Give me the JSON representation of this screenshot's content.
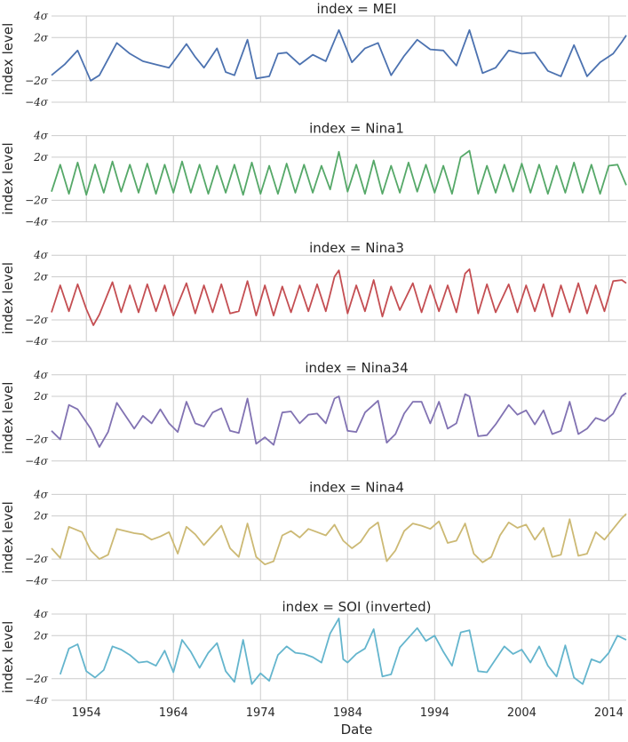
{
  "chart_data": {
    "type": "line",
    "xlabel": "Date",
    "ylabel": "index level",
    "x_range": [
      1950,
      2016
    ],
    "y_range": [
      -4,
      4
    ],
    "y_ticks": [
      {
        "value": 4,
        "label": "4σ"
      },
      {
        "value": 2,
        "label": "2σ"
      },
      {
        "value": -2,
        "label": "−2σ"
      },
      {
        "value": -4,
        "label": "−4σ"
      }
    ],
    "x_ticks": [
      "1954",
      "1964",
      "1974",
      "1984",
      "1994",
      "2004",
      "2014"
    ],
    "x_tick_values": [
      1954,
      1964,
      1974,
      1984,
      1994,
      2004,
      2014
    ],
    "grid": true,
    "panels": [
      {
        "title": "index = MEI",
        "color": "#4c72b0",
        "x": [
          1950.0,
          1951.5,
          1953.0,
          1954.5,
          1955.5,
          1957.5,
          1959.0,
          1960.5,
          1962.0,
          1963.5,
          1965.5,
          1966.5,
          1967.5,
          1969.0,
          1970.0,
          1971.0,
          1972.5,
          1973.5,
          1975.0,
          1976.0,
          1977.0,
          1978.5,
          1980.0,
          1981.5,
          1983.0,
          1984.5,
          1986.0,
          1987.5,
          1989.0,
          1990.5,
          1992.0,
          1993.5,
          1995.0,
          1996.5,
          1998.0,
          1999.5,
          2001.0,
          2002.5,
          2004.0,
          2005.5,
          2007.0,
          2008.5,
          2010.0,
          2011.5,
          2013.0,
          2014.5,
          2015.5,
          2016.0
        ],
        "y": [
          -1.5,
          -0.5,
          0.8,
          -2.0,
          -1.5,
          1.5,
          0.5,
          -0.2,
          -0.5,
          -0.8,
          1.4,
          0.2,
          -0.8,
          1.0,
          -1.2,
          -1.5,
          1.8,
          -1.8,
          -1.6,
          0.5,
          0.6,
          -0.5,
          0.4,
          -0.2,
          2.7,
          -0.3,
          1.0,
          1.5,
          -1.5,
          0.3,
          1.8,
          0.9,
          0.8,
          -0.6,
          2.7,
          -1.3,
          -0.8,
          0.8,
          0.5,
          0.6,
          -1.1,
          -1.6,
          1.3,
          -1.6,
          -0.3,
          0.5,
          1.6,
          2.2
        ]
      },
      {
        "title": "index = Nina1",
        "color": "#55a868",
        "x": [
          1950.0,
          1951.0,
          1952.0,
          1953.0,
          1954.0,
          1955.0,
          1956.0,
          1957.0,
          1958.0,
          1959.0,
          1960.0,
          1961.0,
          1962.0,
          1963.0,
          1964.0,
          1965.0,
          1966.0,
          1967.0,
          1968.0,
          1969.0,
          1970.0,
          1971.0,
          1972.0,
          1973.0,
          1974.0,
          1975.0,
          1976.0,
          1977.0,
          1978.0,
          1979.0,
          1980.0,
          1981.0,
          1982.0,
          1983.0,
          1984.0,
          1985.0,
          1986.0,
          1987.0,
          1988.0,
          1989.0,
          1990.0,
          1991.0,
          1992.0,
          1993.0,
          1994.0,
          1995.0,
          1996.0,
          1997.0,
          1998.0,
          1999.0,
          2000.0,
          2001.0,
          2002.0,
          2003.0,
          2004.0,
          2005.0,
          2006.0,
          2007.0,
          2008.0,
          2009.0,
          2010.0,
          2011.0,
          2012.0,
          2013.0,
          2014.0,
          2015.0,
          2016.0
        ],
        "y": [
          -1.2,
          1.3,
          -1.4,
          1.5,
          -1.5,
          1.3,
          -1.3,
          1.6,
          -1.2,
          1.3,
          -1.3,
          1.4,
          -1.4,
          1.3,
          -1.3,
          1.6,
          -1.3,
          1.3,
          -1.4,
          1.2,
          -1.3,
          1.3,
          -1.5,
          1.5,
          -1.4,
          1.2,
          -1.4,
          1.4,
          -1.3,
          1.3,
          -1.3,
          1.2,
          -1.0,
          2.5,
          -1.2,
          1.3,
          -1.4,
          1.7,
          -1.4,
          1.2,
          -1.3,
          1.5,
          -1.2,
          1.3,
          -1.3,
          1.2,
          -1.4,
          2.0,
          2.6,
          -1.4,
          1.2,
          -1.3,
          1.3,
          -1.2,
          1.4,
          -1.3,
          1.3,
          -1.4,
          1.2,
          -1.3,
          1.5,
          -1.3,
          1.3,
          -1.4,
          1.2,
          1.3,
          -0.6
        ]
      },
      {
        "title": "index = Nina3",
        "color": "#c44e52",
        "x": [
          1950.0,
          1951.0,
          1952.0,
          1953.0,
          1954.0,
          1954.8,
          1955.5,
          1957.0,
          1958.0,
          1959.0,
          1960.0,
          1961.0,
          1962.0,
          1963.0,
          1964.0,
          1965.5,
          1966.5,
          1967.5,
          1968.5,
          1969.5,
          1970.5,
          1971.5,
          1972.5,
          1973.5,
          1974.5,
          1975.5,
          1976.5,
          1977.5,
          1978.5,
          1979.5,
          1980.5,
          1981.5,
          1982.5,
          1983.0,
          1984.0,
          1985.0,
          1986.0,
          1987.0,
          1988.0,
          1989.0,
          1990.0,
          1991.5,
          1992.5,
          1993.5,
          1994.5,
          1995.5,
          1996.5,
          1997.5,
          1998.0,
          1999.0,
          2000.0,
          2001.0,
          2002.5,
          2003.5,
          2004.5,
          2005.5,
          2006.5,
          2007.5,
          2008.5,
          2009.5,
          2010.5,
          2011.5,
          2012.5,
          2013.5,
          2014.5,
          2015.5,
          2016.0
        ],
        "y": [
          -1.3,
          1.2,
          -1.2,
          1.3,
          -1.0,
          -2.5,
          -1.5,
          1.5,
          -1.3,
          1.2,
          -1.3,
          1.3,
          -1.2,
          1.2,
          -1.6,
          1.4,
          -1.4,
          1.2,
          -1.3,
          1.3,
          -1.4,
          -1.2,
          1.6,
          -1.6,
          1.2,
          -1.6,
          1.1,
          -1.3,
          1.2,
          -1.2,
          1.3,
          -1.2,
          2.0,
          2.6,
          -1.4,
          1.2,
          -1.2,
          1.7,
          -1.7,
          1.1,
          -1.1,
          1.4,
          -1.3,
          1.2,
          -1.2,
          1.2,
          -1.3,
          2.3,
          2.7,
          -1.4,
          1.3,
          -1.3,
          1.3,
          -1.3,
          1.2,
          -1.2,
          1.3,
          -1.7,
          1.2,
          -1.3,
          1.4,
          -1.4,
          1.2,
          -1.2,
          1.6,
          1.7,
          1.4
        ]
      },
      {
        "title": "index = Nina34",
        "color": "#8172b2",
        "x": [
          1950.0,
          1951.0,
          1952.0,
          1953.0,
          1954.5,
          1955.5,
          1956.5,
          1957.5,
          1958.5,
          1959.5,
          1960.5,
          1961.5,
          1962.5,
          1963.5,
          1964.5,
          1965.5,
          1966.5,
          1967.5,
          1968.5,
          1969.5,
          1970.5,
          1971.5,
          1972.5,
          1973.5,
          1974.5,
          1975.5,
          1976.5,
          1977.5,
          1978.5,
          1979.5,
          1980.5,
          1981.5,
          1982.5,
          1983.0,
          1984.0,
          1985.0,
          1986.0,
          1987.5,
          1988.5,
          1989.5,
          1990.5,
          1991.5,
          1992.5,
          1993.5,
          1994.5,
          1995.5,
          1996.5,
          1997.5,
          1998.0,
          1999.0,
          2000.0,
          2001.0,
          2002.5,
          2003.5,
          2004.5,
          2005.5,
          2006.5,
          2007.5,
          2008.5,
          2009.5,
          2010.5,
          2011.5,
          2012.5,
          2013.5,
          2014.5,
          2015.5,
          2016.0
        ],
        "y": [
          -1.2,
          -2.0,
          1.2,
          0.8,
          -1.0,
          -2.7,
          -1.3,
          1.4,
          0.2,
          -1.0,
          0.2,
          -0.5,
          0.8,
          -0.5,
          -1.3,
          1.5,
          -0.5,
          -0.8,
          0.5,
          0.9,
          -1.2,
          -1.4,
          1.8,
          -2.4,
          -1.8,
          -2.5,
          0.5,
          0.6,
          -0.5,
          0.3,
          0.4,
          -0.5,
          1.8,
          2.0,
          -1.2,
          -1.3,
          0.5,
          1.6,
          -2.3,
          -1.5,
          0.4,
          1.5,
          1.5,
          -0.5,
          1.5,
          -1.0,
          -0.5,
          2.2,
          2.0,
          -1.7,
          -1.6,
          -0.6,
          1.2,
          0.3,
          0.7,
          -0.6,
          0.7,
          -1.5,
          -1.2,
          1.5,
          -1.5,
          -1.0,
          0.0,
          -0.3,
          0.4,
          2.0,
          2.3
        ]
      },
      {
        "title": "index = Nina4",
        "color": "#ccb974",
        "x": [
          1950.0,
          1951.0,
          1952.0,
          1953.5,
          1954.5,
          1955.5,
          1956.5,
          1957.5,
          1958.5,
          1959.5,
          1960.5,
          1961.5,
          1962.5,
          1963.5,
          1964.5,
          1965.5,
          1966.5,
          1967.5,
          1968.5,
          1969.5,
          1970.5,
          1971.5,
          1972.5,
          1973.5,
          1974.5,
          1975.5,
          1976.5,
          1977.5,
          1978.5,
          1979.5,
          1980.5,
          1981.5,
          1982.5,
          1983.5,
          1984.5,
          1985.5,
          1986.5,
          1987.5,
          1988.5,
          1989.5,
          1990.5,
          1991.5,
          1992.5,
          1993.5,
          1994.5,
          1995.5,
          1996.5,
          1997.5,
          1998.5,
          1999.5,
          2000.5,
          2001.5,
          2002.5,
          2003.5,
          2004.5,
          2005.5,
          2006.5,
          2007.5,
          2008.5,
          2009.5,
          2010.5,
          2011.5,
          2012.5,
          2013.5,
          2014.5,
          2015.5,
          2016.0
        ],
        "y": [
          -1.0,
          -1.9,
          1.0,
          0.5,
          -1.2,
          -2.0,
          -1.6,
          0.8,
          0.6,
          0.4,
          0.3,
          -0.2,
          0.1,
          0.5,
          -1.5,
          1.0,
          0.3,
          -0.7,
          0.2,
          1.1,
          -1.0,
          -1.8,
          1.3,
          -1.8,
          -2.5,
          -2.2,
          0.2,
          0.6,
          0.0,
          0.8,
          0.5,
          0.2,
          1.2,
          -0.3,
          -1.0,
          -0.4,
          0.8,
          1.4,
          -2.2,
          -1.2,
          0.6,
          1.3,
          1.1,
          0.8,
          1.5,
          -0.5,
          -0.3,
          1.3,
          -1.5,
          -2.3,
          -1.8,
          0.2,
          1.4,
          0.9,
          1.2,
          -0.2,
          0.9,
          -1.8,
          -1.6,
          1.7,
          -1.7,
          -1.5,
          0.5,
          -0.2,
          0.8,
          1.8,
          2.2
        ]
      },
      {
        "title": "index = SOI (inverted)",
        "color": "#64b5cd",
        "x": [
          1951.0,
          1952.0,
          1953.0,
          1954.0,
          1955.0,
          1956.0,
          1957.0,
          1958.0,
          1959.0,
          1960.0,
          1961.0,
          1962.0,
          1963.0,
          1964.0,
          1965.0,
          1966.0,
          1967.0,
          1968.0,
          1969.0,
          1970.0,
          1971.0,
          1972.0,
          1973.0,
          1974.0,
          1975.0,
          1976.0,
          1977.0,
          1978.0,
          1979.0,
          1980.0,
          1981.0,
          1982.0,
          1983.0,
          1983.5,
          1984.0,
          1985.0,
          1986.0,
          1987.0,
          1988.0,
          1989.0,
          1990.0,
          1991.0,
          1992.0,
          1993.0,
          1994.0,
          1995.0,
          1996.0,
          1997.0,
          1998.0,
          1999.0,
          2000.0,
          2001.0,
          2002.0,
          2003.0,
          2004.0,
          2005.0,
          2006.0,
          2007.0,
          2008.0,
          2009.0,
          2010.0,
          2011.0,
          2012.0,
          2013.0,
          2014.0,
          2015.0,
          2016.0
        ],
        "y": [
          -1.6,
          0.8,
          1.2,
          -1.3,
          -1.9,
          -1.2,
          1.0,
          0.7,
          0.2,
          -0.5,
          -0.4,
          -0.8,
          0.6,
          -1.4,
          1.6,
          0.5,
          -1.0,
          0.4,
          1.3,
          -1.3,
          -2.3,
          1.6,
          -2.5,
          -1.5,
          -2.2,
          0.2,
          1.0,
          0.4,
          0.3,
          0.0,
          -0.5,
          2.2,
          3.6,
          -0.2,
          -0.5,
          0.3,
          0.8,
          2.6,
          -1.8,
          -1.6,
          0.9,
          1.8,
          2.7,
          1.5,
          2.0,
          0.5,
          -0.8,
          2.3,
          2.5,
          -1.3,
          -1.4,
          -0.2,
          1.0,
          0.3,
          0.7,
          -0.5,
          1.0,
          -0.8,
          -1.8,
          1.1,
          -1.9,
          -2.5,
          -0.2,
          -0.5,
          0.4,
          2.0,
          1.6
        ]
      }
    ]
  }
}
